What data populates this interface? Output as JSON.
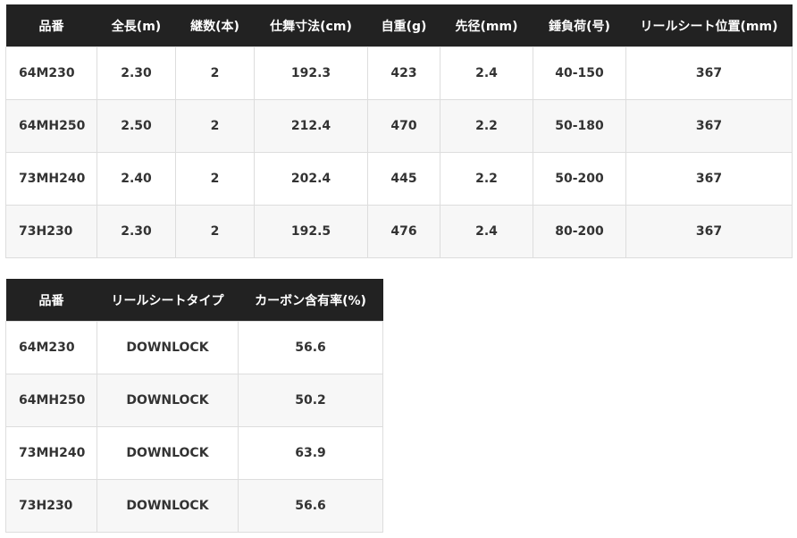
{
  "spec_table": {
    "headers": [
      "品番",
      "全長(m)",
      "継数(本)",
      "仕舞寸法(cm)",
      "自重(g)",
      "先径(mm)",
      "錘負荷(号)",
      "リールシート位置(mm)"
    ],
    "rows": [
      [
        "64M230",
        "2.30",
        "2",
        "192.3",
        "423",
        "2.4",
        "40-150",
        "367"
      ],
      [
        "64MH250",
        "2.50",
        "2",
        "212.4",
        "470",
        "2.2",
        "50-180",
        "367"
      ],
      [
        "73MH240",
        "2.40",
        "2",
        "202.4",
        "445",
        "2.2",
        "50-200",
        "367"
      ],
      [
        "73H230",
        "2.30",
        "2",
        "192.5",
        "476",
        "2.4",
        "80-200",
        "367"
      ]
    ]
  },
  "reel_table": {
    "headers": [
      "品番",
      "リールシートタイプ",
      "カーボン含有率(%)"
    ],
    "rows": [
      [
        "64M230",
        "DOWNLOCK",
        "56.6"
      ],
      [
        "64MH250",
        "DOWNLOCK",
        "50.2"
      ],
      [
        "73MH240",
        "DOWNLOCK",
        "63.9"
      ],
      [
        "73H230",
        "DOWNLOCK",
        "56.6"
      ]
    ]
  },
  "colors": {
    "header_bg": "#222222",
    "header_text": "#ffffff",
    "alt_row": "#f7f7f7"
  }
}
